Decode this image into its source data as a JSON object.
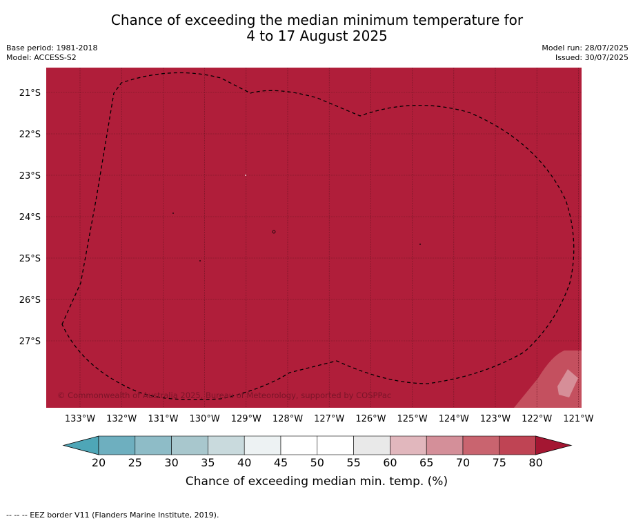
{
  "title": {
    "line1": "Chance of exceeding the median minimum temperature for",
    "line2": "4 to 17 August 2025"
  },
  "meta_left": {
    "base_period": "Base period: 1981-2018",
    "model": "Model: ACCESS-S2"
  },
  "meta_right": {
    "model_run": "Model run: 28/07/2025",
    "issued": "Issued: 30/07/2025"
  },
  "map": {
    "fill_color": "#b01e3a",
    "lat_labels": [
      "21°S",
      "22°S",
      "23°S",
      "24°S",
      "25°S",
      "26°S",
      "27°S"
    ],
    "lon_labels": [
      "133°W",
      "132°W",
      "131°W",
      "130°W",
      "129°W",
      "128°W",
      "127°W",
      "126°W",
      "125°W",
      "124°W",
      "123°W",
      "122°W",
      "121°W"
    ],
    "copyright": "© Commonwealth of Australia 2025, Bureau of Meteorology, supported by COSPPac"
  },
  "colorbar": {
    "ticks": [
      "20",
      "25",
      "30",
      "35",
      "40",
      "45",
      "50",
      "55",
      "60",
      "65",
      "70",
      "75",
      "80"
    ],
    "colors": [
      "#6eafbf",
      "#8ebcc7",
      "#a8c7cd",
      "#c9dadd",
      "#edf2f3",
      "#ffffff",
      "#ffffff",
      "#e9e9e9",
      "#e1b7bd",
      "#d48f99",
      "#c9646f",
      "#bf4454"
    ],
    "under_color": "#4ea6b7",
    "over_color": "#a41632",
    "label": "Chance of exceeding median min. temp. (%)"
  },
  "footer": "--  --  -- EEZ border V11 (Flanders Marine Institute, 2019)."
}
